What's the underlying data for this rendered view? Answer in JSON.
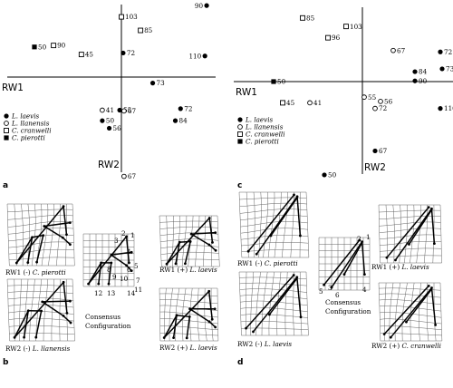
{
  "panels": {
    "a": "a",
    "b": "b",
    "c": "c",
    "d": "d"
  },
  "axes": {
    "rw1": "RW1",
    "rw2": "RW2"
  },
  "legend": [
    {
      "symbol": "filled-circle",
      "name": "L. laevis"
    },
    {
      "symbol": "open-circle",
      "name": "L. llanensis"
    },
    {
      "symbol": "open-square",
      "name": "C. cranwelli"
    },
    {
      "symbol": "filled-square",
      "name": "C. pierotti"
    }
  ],
  "chart_data": [
    {
      "type": "scatter",
      "panel": "a",
      "xlabel": "RW1",
      "ylabel": "RW2",
      "points": [
        {
          "label": "90",
          "species": "L. laevis",
          "x": 0.98,
          "y": 0.95
        },
        {
          "label": "103",
          "species": "C. cranwelli",
          "x": 0.0,
          "y": 0.8
        },
        {
          "label": "85",
          "species": "C. cranwelli",
          "x": 0.22,
          "y": 0.62
        },
        {
          "label": "110",
          "species": "L. laevis",
          "x": 0.96,
          "y": 0.28
        },
        {
          "label": "72",
          "species": "L. laevis",
          "x": 0.02,
          "y": 0.32
        },
        {
          "label": "50",
          "species": "C. pierotti",
          "x": -1.0,
          "y": 0.4
        },
        {
          "label": "90",
          "species": "C. cranwelli",
          "x": -0.78,
          "y": 0.42
        },
        {
          "label": "45",
          "species": "C. cranwelli",
          "x": -0.46,
          "y": 0.3
        },
        {
          "label": "73",
          "species": "L. laevis",
          "x": 0.36,
          "y": -0.08
        },
        {
          "label": "72",
          "species": "L. laevis",
          "x": 0.68,
          "y": -0.42
        },
        {
          "label": "84",
          "species": "L. laevis",
          "x": 0.62,
          "y": -0.58
        },
        {
          "label": "41",
          "species": "L. llanensis",
          "x": -0.22,
          "y": -0.44
        },
        {
          "label": "50",
          "species": "L. laevis",
          "x": -0.22,
          "y": -0.58
        },
        {
          "label": "56",
          "species": "L. laevis",
          "x": -0.14,
          "y": -0.68
        },
        {
          "label": "55",
          "species": "L. laevis",
          "x": -0.02,
          "y": -0.44
        },
        {
          "label": "67",
          "species": "L. llanensis",
          "x": 0.03,
          "y": -0.45
        },
        {
          "label": "67",
          "species": "L. llanensis",
          "x": 0.03,
          "y": -1.32
        }
      ]
    },
    {
      "type": "scatter",
      "panel": "c",
      "xlabel": "RW1",
      "ylabel": "RW2",
      "points": [
        {
          "label": "85",
          "species": "C. cranwelli",
          "x": -0.66,
          "y": 0.9
        },
        {
          "label": "103",
          "species": "C. cranwelli",
          "x": -0.18,
          "y": 0.78
        },
        {
          "label": "96",
          "species": "C. cranwelli",
          "x": -0.38,
          "y": 0.62
        },
        {
          "label": "67",
          "species": "L. llanensis",
          "x": 0.34,
          "y": 0.44
        },
        {
          "label": "72",
          "species": "L. laevis",
          "x": 0.86,
          "y": 0.42
        },
        {
          "label": "84",
          "species": "L. laevis",
          "x": 0.58,
          "y": 0.14
        },
        {
          "label": "73",
          "species": "L. laevis",
          "x": 0.88,
          "y": 0.18
        },
        {
          "label": "90",
          "species": "L. laevis",
          "x": 0.58,
          "y": 0.01
        },
        {
          "label": "50",
          "species": "C. pierotti",
          "x": -0.98,
          "y": 0.0
        },
        {
          "label": "45",
          "species": "C. cranwelli",
          "x": -0.88,
          "y": -0.3
        },
        {
          "label": "41",
          "species": "L. llanensis",
          "x": -0.58,
          "y": -0.3
        },
        {
          "label": "55",
          "species": "L. llanensis",
          "x": 0.02,
          "y": -0.22
        },
        {
          "label": "56",
          "species": "L. llanensis",
          "x": 0.2,
          "y": -0.28
        },
        {
          "label": "72",
          "species": "L. llanensis",
          "x": 0.14,
          "y": -0.38
        },
        {
          "label": "110",
          "species": "L. laevis",
          "x": 0.86,
          "y": -0.38
        },
        {
          "label": "67",
          "species": "L. laevis",
          "x": 0.14,
          "y": -0.98
        },
        {
          "label": "50",
          "species": "L. laevis",
          "x": -0.42,
          "y": -1.32
        }
      ]
    }
  ],
  "grids_b": {
    "rw1_minus": {
      "caption_prefix": "RW1 (-)",
      "species": "C. pierotti"
    },
    "rw2_minus": {
      "caption_prefix": "RW2 (-)",
      "species": "L. llanensis"
    },
    "rw1_plus": {
      "caption_prefix": "RW1 (+)",
      "species": "L. laevis"
    },
    "rw2_plus": {
      "caption_prefix": "RW2 (+)",
      "species": "L. laevis"
    },
    "consensus": [
      "Consensus",
      "Configuration"
    ],
    "landmarks": [
      "1",
      "2",
      "3",
      "4",
      "5",
      "6",
      "7",
      "8",
      "9",
      "10",
      "11",
      "12",
      "13",
      "14"
    ]
  },
  "grids_d": {
    "rw1_minus": {
      "caption_prefix": "RW1 (-)",
      "species": "C. pierotti"
    },
    "rw2_minus": {
      "caption_prefix": "RW2 (-)",
      "species": "L. laevis"
    },
    "rw1_plus": {
      "caption_prefix": "RW1 (+)",
      "species": "L. laevis"
    },
    "rw2_plus": {
      "caption_prefix": "RW2 (+)",
      "species": "C. cranwelli"
    },
    "consensus": [
      "Consensus",
      "Configuration"
    ],
    "landmarks": [
      "1",
      "2",
      "3",
      "4",
      "5",
      "6"
    ]
  }
}
